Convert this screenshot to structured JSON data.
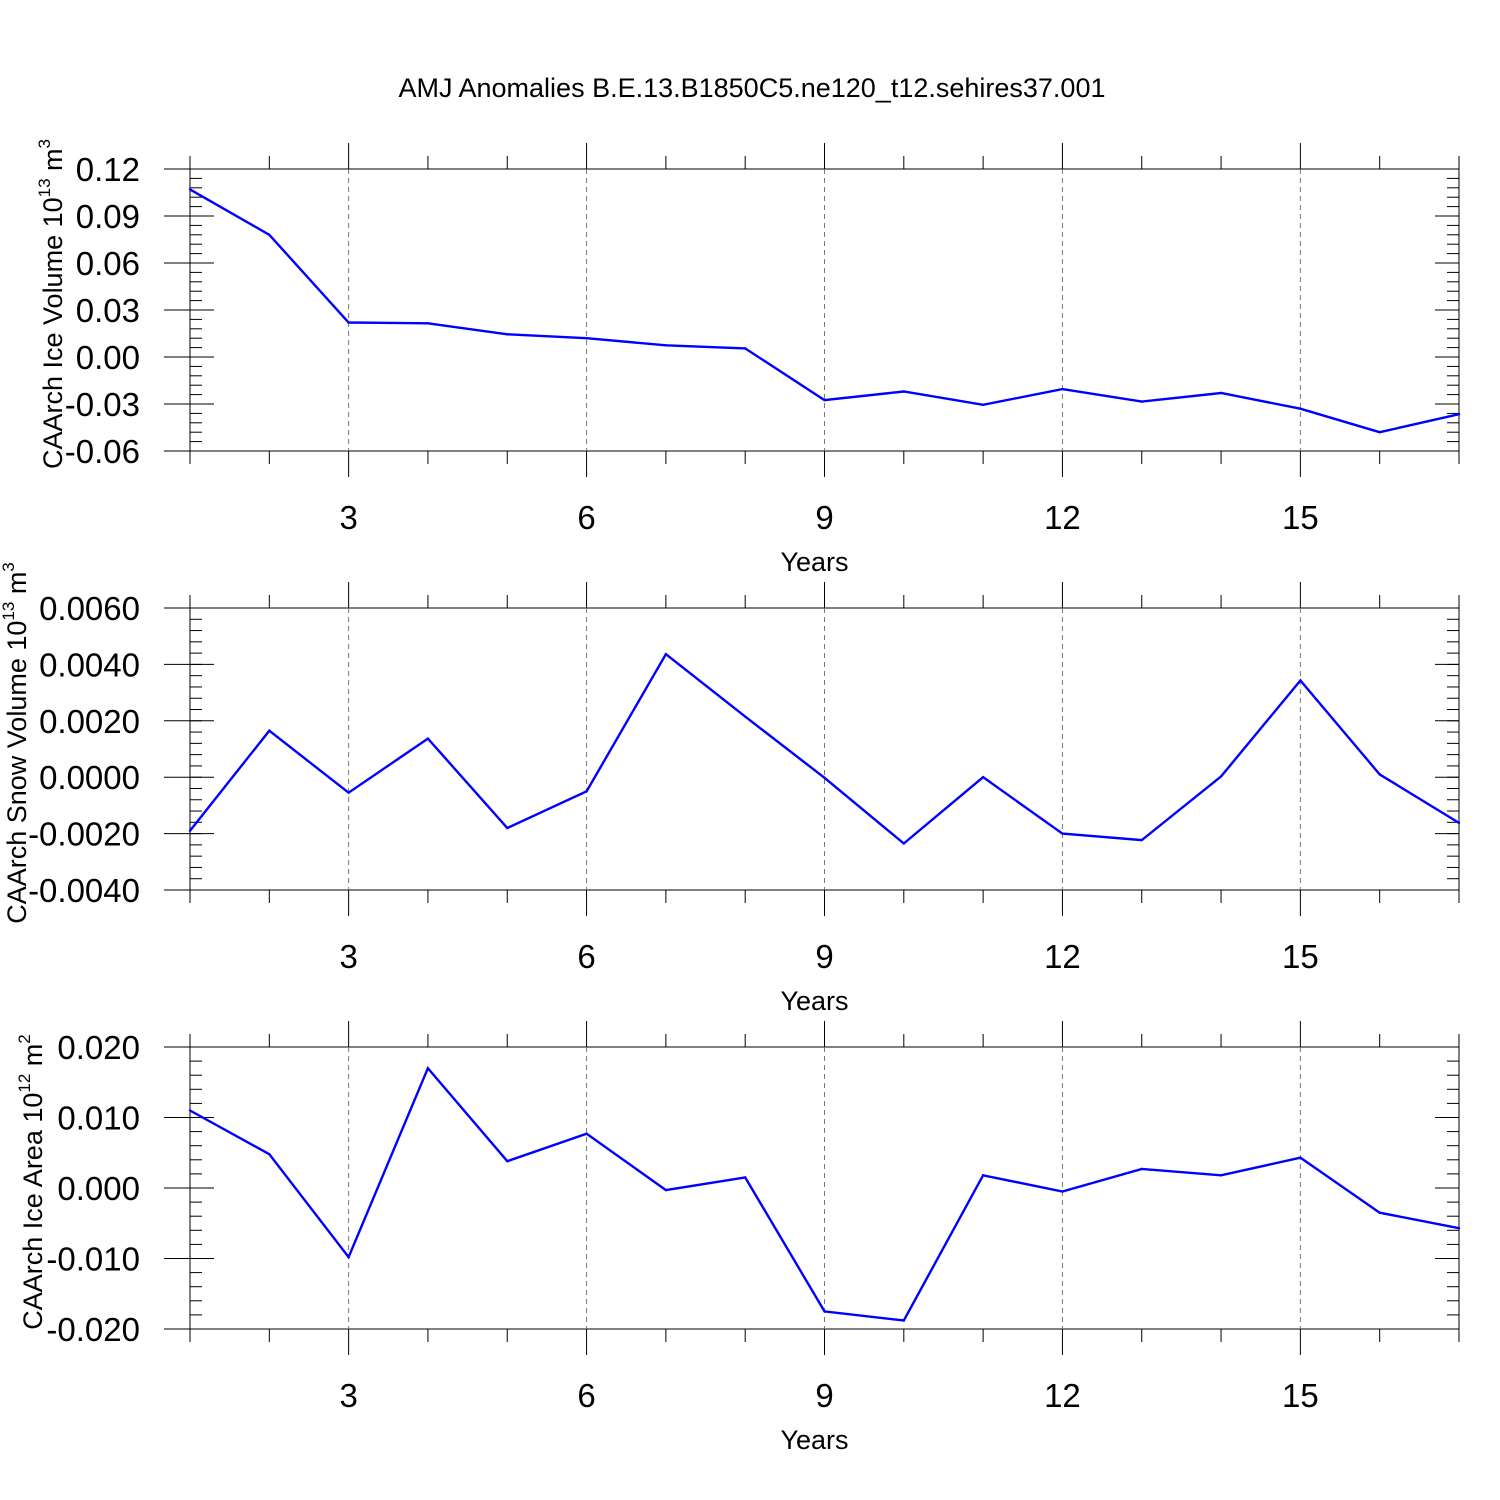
{
  "chart_data": [
    {
      "type": "line",
      "title": "AMJ Anomalies B.E.13.B1850C5.ne120_t12.sehires37.001",
      "xlabel": "Years",
      "ylabel": "CAArch Ice Volume 10",
      "ylabel_sup": "13",
      "ylabel_unit": "m",
      "ylabel_unit_sup": "3",
      "xlim": [
        1,
        17
      ],
      "ylim": [
        -0.06,
        0.12
      ],
      "xticks": [
        3,
        6,
        9,
        12,
        15
      ],
      "yticks": [
        "0.12",
        "0.09",
        "0.06",
        "0.03",
        "0.00",
        "-0.03",
        "-0.06"
      ],
      "ytick_values": [
        0.12,
        0.09,
        0.06,
        0.03,
        0.0,
        -0.03,
        -0.06
      ],
      "y_minor_step": 0.006,
      "series": [
        {
          "name": "ice volume",
          "color": "#0000ff",
          "x": [
            1,
            2,
            3,
            4,
            5,
            6,
            7,
            8,
            9,
            10,
            11,
            12,
            13,
            14,
            15,
            16,
            17
          ],
          "values": [
            0.107,
            0.078,
            0.022,
            0.0215,
            0.0145,
            0.012,
            0.0075,
            0.0055,
            -0.0275,
            -0.022,
            -0.0305,
            -0.0205,
            -0.0285,
            -0.023,
            -0.033,
            -0.048,
            -0.0365
          ]
        }
      ]
    },
    {
      "type": "line",
      "title": "",
      "xlabel": "Years",
      "ylabel": "CAArch Snow Volume 10",
      "ylabel_sup": "13",
      "ylabel_unit": "m",
      "ylabel_unit_sup": "3",
      "xlim": [
        1,
        17
      ],
      "ylim": [
        -0.004,
        0.006
      ],
      "xticks": [
        3,
        6,
        9,
        12,
        15
      ],
      "yticks": [
        "0.0060",
        "0.0040",
        "0.0020",
        "0.0000",
        "-0.0020",
        "-0.0040"
      ],
      "ytick_values": [
        0.006,
        0.004,
        0.002,
        0.0,
        -0.002,
        -0.004
      ],
      "y_minor_step": 0.0004,
      "series": [
        {
          "name": "snow volume",
          "color": "#0000ff",
          "x": [
            1,
            2,
            3,
            4,
            5,
            6,
            7,
            8,
            9,
            10,
            11,
            12,
            13,
            14,
            15,
            16,
            17
          ],
          "values": [
            -0.0019,
            0.00165,
            -0.00055,
            0.00137,
            -0.0018,
            -0.0005,
            0.00436,
            0.00215,
            -2e-05,
            -0.00235,
            0.0,
            -0.002,
            -0.00223,
            3e-05,
            0.00343,
            0.0001,
            -0.00162
          ]
        }
      ]
    },
    {
      "type": "line",
      "title": "",
      "xlabel": "Years",
      "ylabel": "CAArch Ice Area 10",
      "ylabel_sup": "12",
      "ylabel_unit": "m",
      "ylabel_unit_sup": "2",
      "xlim": [
        1,
        17
      ],
      "ylim": [
        -0.02,
        0.02
      ],
      "xticks": [
        3,
        6,
        9,
        12,
        15
      ],
      "yticks": [
        "0.020",
        "0.010",
        "0.000",
        "-0.010",
        "-0.020"
      ],
      "ytick_values": [
        0.02,
        0.01,
        0.0,
        -0.01,
        -0.02
      ],
      "y_minor_step": 0.002,
      "series": [
        {
          "name": "ice area",
          "color": "#0000ff",
          "x": [
            1,
            2,
            3,
            4,
            5,
            6,
            7,
            8,
            9,
            10,
            11,
            12,
            13,
            14,
            15,
            16,
            17
          ],
          "values": [
            0.011,
            0.0048,
            -0.0098,
            0.017,
            0.0038,
            0.0077,
            -0.0003,
            0.0015,
            -0.0175,
            -0.0188,
            0.0018,
            -0.0005,
            0.0027,
            0.0018,
            0.0043,
            -0.0035,
            -0.0057
          ]
        }
      ]
    }
  ]
}
